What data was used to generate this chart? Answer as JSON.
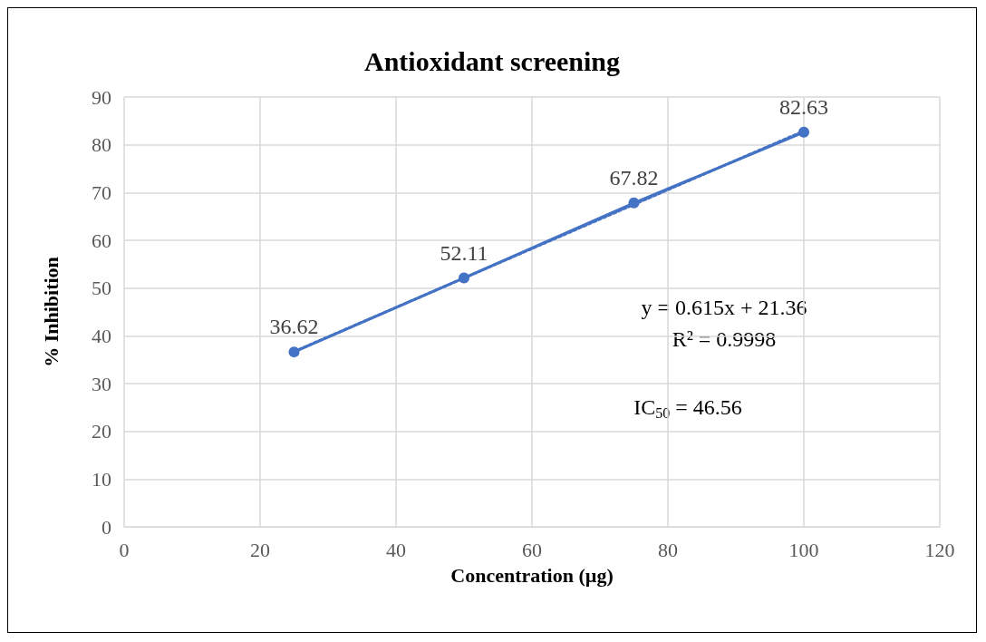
{
  "chart_data": {
    "type": "line",
    "title": "Antioxidant screening",
    "xlabel": "Concentration (µg)",
    "ylabel": "% Inhibition",
    "x": [
      25,
      50,
      75,
      100
    ],
    "series": [
      {
        "color": "#4472c4",
        "values": [
          36.62,
          52.11,
          67.82,
          82.63
        ],
        "marker": "circle",
        "line_style": "solid",
        "data_labels": true
      },
      {
        "type": "line",
        "color": "#4472c4",
        "x": [
          25,
          100
        ],
        "values": [
          36.7,
          82.9
        ],
        "line_style": "dotted"
      }
    ],
    "xlim": [
      0,
      120
    ],
    "xticks": [
      0,
      20,
      40,
      60,
      80,
      100,
      120
    ],
    "ylim": [
      0,
      90
    ],
    "yticks": [
      0,
      10,
      20,
      30,
      40,
      50,
      60,
      70,
      80,
      90
    ],
    "grid": true,
    "annotations": [
      "y = 0.615x + 21.36",
      "R² = 0.9998",
      "IC$_{50}$ = 46.56"
    ]
  }
}
